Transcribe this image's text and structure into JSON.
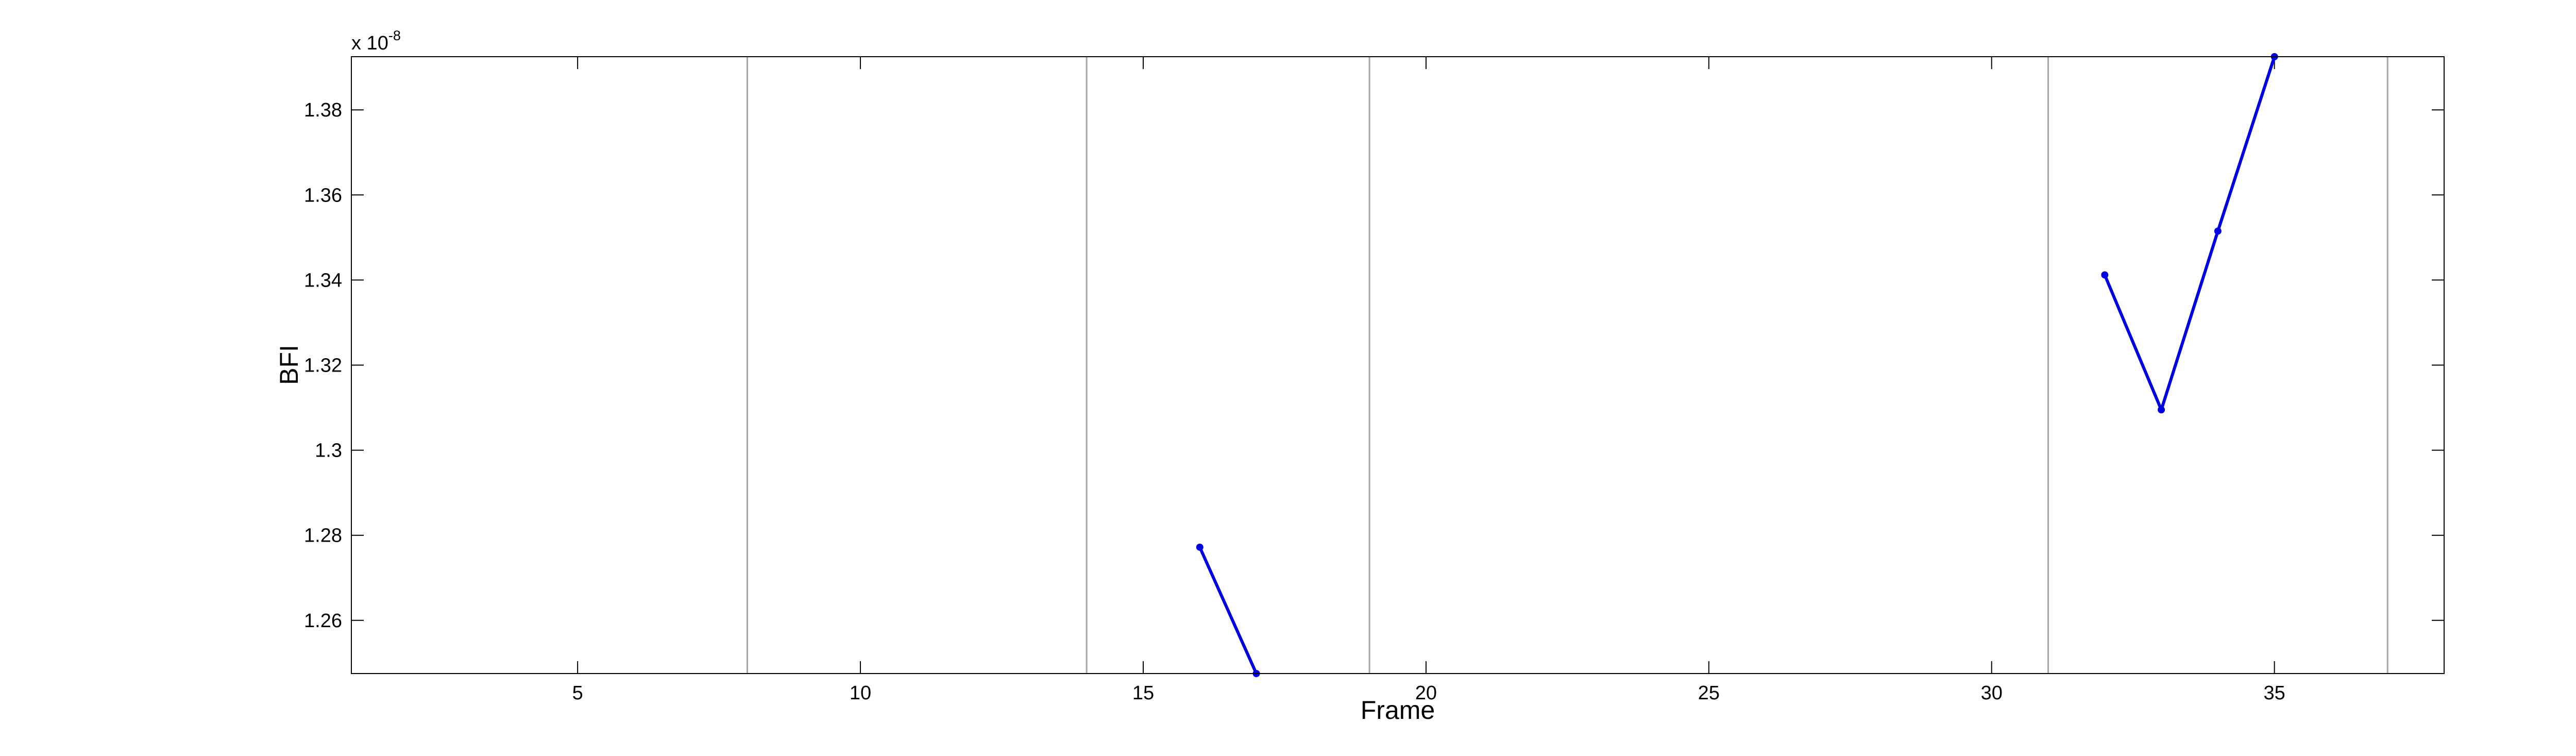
{
  "chart_data": {
    "type": "line",
    "xlabel": "Frame",
    "ylabel": "BFI",
    "y_multiplier": {
      "base": "x 10",
      "exponent": "-8"
    },
    "xlim": [
      1,
      38
    ],
    "ylim": [
      1.2475,
      1.3925
    ],
    "xticks": [
      5,
      10,
      15,
      20,
      25,
      30,
      35
    ],
    "xtick_labels": [
      "5",
      "10",
      "15",
      "20",
      "25",
      "30",
      "35"
    ],
    "yticks": [
      1.26,
      1.28,
      1.3,
      1.32,
      1.34,
      1.36,
      1.38
    ],
    "ytick_labels": [
      "1.26",
      "1.28",
      "1.3",
      "1.32",
      "1.34",
      "1.36",
      "1.38"
    ],
    "vertical_lines": [
      8,
      14,
      19,
      31,
      37
    ],
    "vertical_line_color": "#a6a6a6",
    "grid": false,
    "series": [
      {
        "color": "#0000e6",
        "marker": "point",
        "segments": [
          [
            {
              "x": 16,
              "y": 1.2772
            },
            {
              "x": 17,
              "y": 1.2475
            }
          ],
          [
            {
              "x": 32,
              "y": 1.3412
            },
            {
              "x": 33,
              "y": 1.3095
            },
            {
              "x": 34,
              "y": 1.3515
            },
            {
              "x": 35,
              "y": 1.3925
            }
          ]
        ]
      }
    ]
  }
}
